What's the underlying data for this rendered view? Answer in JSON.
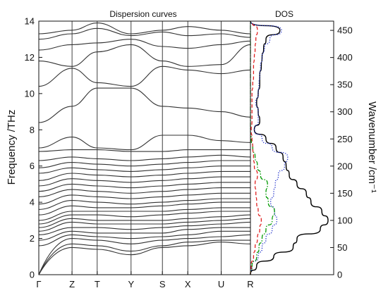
{
  "chart_data": [
    {
      "type": "line",
      "title": "Dispersion curves",
      "ylabel": "Frequency /THz",
      "ylim": [
        0,
        14
      ],
      "y_ticks": [
        "0",
        "2",
        "4",
        "6",
        "8",
        "10",
        "12",
        "14"
      ],
      "k_points": [
        "Γ",
        "Z",
        "T",
        "Y",
        "S",
        "X",
        "U",
        "R"
      ],
      "k_positions": [
        0,
        0.157,
        0.276,
        0.436,
        0.584,
        0.704,
        0.862,
        1.0
      ],
      "branches_at_k": [
        [
          0,
          0,
          0,
          1.6,
          1.9,
          2.2,
          2.4,
          2.6,
          2.8,
          3.0,
          3.3,
          3.6,
          3.9,
          4.3,
          4.6,
          4.9,
          5.2,
          5.6,
          5.9,
          6.3,
          6.8,
          7.0,
          8.4,
          10.4,
          11.8,
          12.4,
          13.0,
          13.3
        ],
        [
          1.5,
          1.7,
          2.0,
          2.2,
          2.4,
          2.6,
          2.9,
          3.1,
          3.3,
          3.5,
          3.8,
          4.1,
          4.4,
          4.7,
          5.0,
          5.3,
          5.6,
          5.9,
          6.2,
          6.5,
          6.9,
          7.6,
          9.3,
          11.4,
          11.5,
          12.7,
          13.3,
          13.5
        ],
        [
          1.4,
          1.6,
          1.9,
          2.1,
          2.3,
          2.6,
          2.8,
          3.0,
          3.3,
          3.5,
          3.7,
          4.0,
          4.3,
          4.6,
          4.9,
          5.2,
          5.5,
          5.8,
          6.1,
          6.4,
          6.9,
          7.0,
          10.3,
          10.6,
          12.3,
          12.8,
          13.6,
          13.9
        ],
        [
          1.1,
          1.3,
          1.7,
          2.0,
          2.3,
          2.5,
          2.8,
          3.0,
          3.2,
          3.5,
          3.7,
          3.9,
          4.2,
          4.5,
          4.8,
          5.1,
          5.4,
          5.7,
          6.0,
          6.3,
          6.8,
          6.9,
          10.3,
          10.4,
          12.7,
          13.0,
          13.2,
          13.3
        ],
        [
          1.5,
          1.6,
          1.9,
          2.1,
          2.3,
          2.6,
          2.8,
          3.0,
          3.3,
          3.5,
          3.8,
          4.0,
          4.3,
          4.6,
          4.9,
          5.2,
          5.5,
          5.8,
          6.1,
          6.4,
          6.8,
          7.7,
          9.3,
          11.5,
          11.8,
          12.6,
          13.4,
          13.5
        ],
        [
          1.6,
          1.8,
          2.0,
          2.2,
          2.5,
          2.7,
          2.9,
          3.1,
          3.4,
          3.6,
          3.9,
          4.1,
          4.4,
          4.7,
          5.0,
          5.3,
          5.6,
          5.9,
          6.2,
          6.5,
          6.9,
          7.7,
          9.2,
          11.3,
          11.5,
          12.5,
          13.2,
          13.7
        ],
        [
          1.8,
          1.9,
          2.1,
          2.4,
          2.6,
          2.8,
          3.0,
          3.2,
          3.5,
          3.7,
          4.0,
          4.2,
          4.5,
          4.8,
          5.1,
          5.4,
          5.7,
          6.0,
          6.3,
          6.6,
          6.9,
          7.4,
          9.0,
          11.1,
          11.6,
          12.7,
          13.3,
          13.5
        ],
        [
          1.7,
          1.9,
          2.2,
          2.4,
          2.6,
          2.9,
          3.1,
          3.3,
          3.5,
          3.7,
          4.0,
          4.2,
          4.5,
          4.8,
          5.1,
          5.4,
          5.7,
          6.0,
          6.3,
          6.5,
          6.9,
          7.3,
          8.7,
          11.3,
          12.7,
          12.9,
          13.1,
          13.3
        ]
      ]
    },
    {
      "type": "line",
      "title": "DOS",
      "y2label": "Wavenumber /cm⁻¹",
      "y2lim": [
        0,
        467
      ],
      "y2_ticks": [
        "0",
        "50",
        "100",
        "150",
        "200",
        "250",
        "300",
        "350",
        "400",
        "450"
      ],
      "y": [
        0,
        0.5,
        1,
        1.5,
        2,
        2.5,
        3,
        3.5,
        4,
        4.5,
        5,
        5.5,
        6,
        6.5,
        7,
        7.5,
        8,
        8.5,
        9,
        9.5,
        10,
        10.5,
        11,
        11.5,
        12,
        12.5,
        13,
        13.5,
        14
      ],
      "series": [
        {
          "color": "#000000",
          "style": "solid",
          "values": [
            0,
            0.08,
            0.3,
            0.55,
            0.6,
            0.9,
            1.0,
            0.92,
            0.78,
            0.72,
            0.6,
            0.5,
            0.46,
            0.42,
            0.33,
            0.2,
            0.05,
            0.12,
            0.1,
            0.08,
            0.1,
            0.12,
            0.12,
            0.14,
            0.15,
            0.17,
            0.2,
            0.38,
            0
          ]
        },
        {
          "color": "#2233cc",
          "style": "dotted",
          "values": [
            0,
            0.02,
            0.1,
            0.15,
            0.2,
            0.28,
            0.34,
            0.31,
            0.26,
            0.3,
            0.32,
            0.36,
            0.44,
            0.48,
            0.28,
            0.15,
            0.05,
            0.1,
            0.1,
            0.07,
            0.1,
            0.11,
            0.12,
            0.13,
            0.15,
            0.18,
            0.25,
            0.4,
            0
          ]
        },
        {
          "color": "#009900",
          "style": "dashdot",
          "values": [
            0,
            0.02,
            0.08,
            0.11,
            0.15,
            0.2,
            0.28,
            0.31,
            0.23,
            0.2,
            0.22,
            0.13,
            0.09,
            0.06,
            0.03,
            0.01,
            0,
            0,
            0,
            0,
            0,
            0,
            0,
            0,
            0,
            0,
            0,
            0,
            0
          ]
        },
        {
          "color": "#e02020",
          "style": "dashed",
          "values": [
            0,
            0.01,
            0.04,
            0.06,
            0.09,
            0.12,
            0.14,
            0.1,
            0.08,
            0.07,
            0.06,
            0.09,
            0.05,
            0.04,
            0.03,
            0.02,
            0.01,
            0.02,
            0.02,
            0.02,
            0.02,
            0.03,
            0.04,
            0.04,
            0.05,
            0.06,
            0.07,
            0.09,
            0.02
          ]
        }
      ]
    }
  ]
}
